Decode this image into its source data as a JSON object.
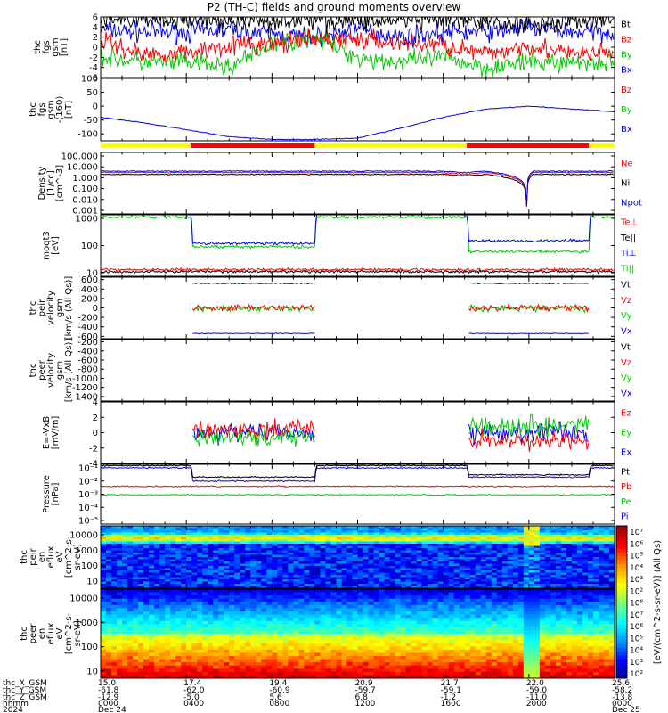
{
  "title": "P2 (TH-C) fields and ground moments overview",
  "chart_data": [
    {
      "type": "line",
      "ylabel": [
        "thc",
        "fgs",
        "gsm",
        "[nT]"
      ],
      "ylim": [
        -6,
        6
      ],
      "yticks": [
        "6",
        "4",
        "2",
        "0",
        "-2",
        "-4",
        "-6"
      ],
      "legend": [
        "Bt",
        "Bz",
        "By",
        "Bx"
      ],
      "colors": [
        "#000000",
        "#ff0000",
        "#00cc00",
        "#0000ff"
      ],
      "series": [
        {
          "name": "Bt",
          "x": [
            0,
            2,
            4,
            6,
            8,
            10,
            12,
            14,
            16,
            18,
            20,
            22,
            24
          ],
          "values": [
            5.6,
            5.5,
            5.4,
            5.3,
            5.2,
            5.4,
            5.2,
            5.3,
            5.2,
            5.0,
            4.6,
            5.3,
            5.4
          ]
        },
        {
          "name": "Bz",
          "x": [
            0,
            2,
            4,
            6,
            8,
            10,
            12,
            14,
            16,
            18,
            20,
            22,
            24
          ],
          "values": [
            1.5,
            -1.5,
            -1.0,
            0.5,
            0.5,
            1.5,
            1.5,
            0.8,
            0.5,
            -1.5,
            0.5,
            -1.5,
            -1.0
          ]
        },
        {
          "name": "By",
          "x": [
            0,
            2,
            4,
            6,
            8,
            10,
            12,
            14,
            16,
            18,
            20,
            22,
            24
          ],
          "values": [
            -2,
            -3,
            -3,
            -4,
            0.5,
            2,
            -2,
            -3,
            -2,
            -4,
            -3,
            -3,
            -3
          ]
        },
        {
          "name": "Bx",
          "x": [
            0,
            2,
            4,
            6,
            8,
            10,
            12,
            14,
            16,
            18,
            20,
            22,
            24
          ],
          "values": [
            3.5,
            3,
            3,
            3.5,
            2.5,
            2,
            3.5,
            2,
            3,
            3,
            4,
            3,
            3
          ]
        }
      ]
    },
    {
      "type": "line",
      "ylabel": [
        "thc",
        "fgs",
        "gsm",
        "-(160)",
        "[nT]"
      ],
      "ylim": [
        -125,
        100
      ],
      "yticks": [
        "100",
        "50",
        "0",
        "-50",
        "-100"
      ],
      "legend": [
        "Bz",
        "By",
        "Bx"
      ],
      "colors": [
        "#ff0000",
        "#00cc00",
        "#0000ff"
      ],
      "series": [
        {
          "name": "Bx",
          "x": [
            0,
            2,
            4,
            6,
            8,
            10,
            12,
            14,
            16,
            18,
            20,
            22,
            24
          ],
          "values": [
            -40,
            -60,
            -85,
            -110,
            -120,
            -120,
            -115,
            -80,
            -40,
            -10,
            0,
            -10,
            -20
          ]
        }
      ],
      "region_bar": {
        "colors": [
          "#ffff00",
          "#ff0000",
          "#ffff00",
          "#ff0000",
          "#ffff00"
        ],
        "x_ranges": [
          [
            0,
            4.2
          ],
          [
            4.2,
            10
          ],
          [
            10,
            17.1
          ],
          [
            17.1,
            22.8
          ],
          [
            22.8,
            24
          ]
        ]
      }
    },
    {
      "type": "line",
      "ylabel": [
        "Density",
        "[1/cc]",
        "[cm^-3]"
      ],
      "scale": "log",
      "yticks": [
        "100.000",
        "10.000",
        "1.000",
        "0.100",
        "0.010",
        "0.001"
      ],
      "legend": [
        "Ne",
        "Ni",
        "Npot"
      ],
      "colors": [
        "#ff0000",
        "#000000",
        "#0000ff"
      ],
      "series": [
        {
          "name": "Npot",
          "x": [
            0,
            4,
            8,
            10,
            12,
            16,
            17,
            18,
            19.9,
            20.2,
            21,
            24
          ],
          "values": [
            4,
            4,
            4,
            4,
            4,
            4,
            3,
            4,
            0.003,
            4,
            4,
            4
          ]
        },
        {
          "name": "Ne",
          "x": [
            0,
            4,
            8,
            10,
            12,
            16,
            17,
            18,
            19.9,
            20.2,
            21,
            24
          ],
          "values": [
            3,
            3,
            3,
            3,
            3,
            3,
            2,
            3,
            0.002,
            3,
            3,
            3
          ]
        },
        {
          "name": "Ni",
          "x": [
            0,
            4,
            8,
            10,
            12,
            16,
            17,
            18,
            19.9,
            20.2,
            21,
            24
          ],
          "values": [
            2,
            2,
            2,
            2,
            2,
            2,
            1.5,
            2,
            0.003,
            2,
            2,
            2
          ]
        }
      ]
    },
    {
      "type": "line",
      "ylabel": [
        "moqt3",
        "[eV]"
      ],
      "scale": "log",
      "yticks": [
        "1000",
        "100",
        "10"
      ],
      "legend": [
        "Te⊥",
        "Te||",
        "Ti⊥",
        "Ti||"
      ],
      "colors": [
        "#ff0000",
        "#000000",
        "#0000ff",
        "#00cc00"
      ],
      "series": [
        {
          "name": "Ti⊥",
          "x": [
            0,
            4.2,
            4.3,
            10,
            10.1,
            17.1,
            17.2,
            22.8,
            22.9,
            24
          ],
          "values": [
            1500,
            1500,
            120,
            120,
            1500,
            1500,
            150,
            150,
            1500,
            1500
          ]
        },
        {
          "name": "Ti||",
          "x": [
            0,
            4.2,
            4.3,
            10,
            10.1,
            17.1,
            17.2,
            22.8,
            22.9,
            24
          ],
          "values": [
            1100,
            1100,
            90,
            90,
            1100,
            1100,
            60,
            60,
            1100,
            1100
          ]
        },
        {
          "name": "Te⊥",
          "x": [
            0,
            24
          ],
          "values": [
            13,
            13
          ]
        },
        {
          "name": "Te||",
          "x": [
            0,
            24
          ],
          "values": [
            11,
            11
          ]
        }
      ]
    },
    {
      "type": "line",
      "ylabel": [
        "thc",
        "peir",
        "velocity",
        "gsm",
        "[km/s (All Qs)]"
      ],
      "ylim": [
        -650,
        650
      ],
      "yticks": [
        "600",
        "400",
        "200",
        "0",
        "-200",
        "-400",
        "-600"
      ],
      "legend": [
        "Vt",
        "Vz",
        "Vy",
        "Vx"
      ],
      "colors": [
        "#000000",
        "#ff0000",
        "#00cc00",
        "#0000ff"
      ],
      "series": [
        {
          "name": "Vt",
          "x": [
            4.3,
            10,
            17.2,
            22.8
          ],
          "values": [
            520,
            520,
            520,
            520
          ]
        },
        {
          "name": "Vz",
          "x": [
            4.3,
            10,
            17.2,
            22.8
          ],
          "values": [
            0,
            0,
            0,
            0
          ]
        },
        {
          "name": "Vy",
          "x": [
            4.3,
            10,
            17.2,
            22.8
          ],
          "values": [
            -10,
            -10,
            -10,
            -10
          ]
        },
        {
          "name": "Vx",
          "x": [
            4.3,
            10,
            17.2,
            22.8
          ],
          "values": [
            -540,
            -540,
            -540,
            -540
          ]
        }
      ]
    },
    {
      "type": "line",
      "ylabel": [
        "thc",
        "peer",
        "velocity",
        "gsm",
        "[km/s (All Qs)]"
      ],
      "ylim": [
        -1500,
        -150
      ],
      "yticks": [
        "-200",
        "-400",
        "-600",
        "-800",
        "-1000",
        "-1200",
        "-1400"
      ],
      "legend": [
        "Vt",
        "Vz",
        "Vy",
        "Vx"
      ],
      "colors": [
        "#000000",
        "#ff0000",
        "#00cc00",
        "#0000ff"
      ],
      "series": []
    },
    {
      "type": "line",
      "ylabel": [
        "E=-VxB",
        "[mV/m]"
      ],
      "ylim": [
        -4,
        4
      ],
      "yticks": [
        "4",
        "2",
        "0",
        "-2",
        "-4"
      ],
      "legend": [
        "Ez",
        "Ey",
        "Ex"
      ],
      "colors": [
        "#ff0000",
        "#00cc00",
        "#0000ff"
      ],
      "series": [
        {
          "name": "Ez",
          "x": [
            4.3,
            10,
            17.2,
            22.8
          ],
          "values": [
            0.5,
            0.5,
            -1.0,
            -1.0
          ]
        },
        {
          "name": "Ey",
          "x": [
            4.3,
            10,
            17.2,
            22.8
          ],
          "values": [
            -0.5,
            -0.5,
            1.0,
            1.0
          ]
        },
        {
          "name": "Ex",
          "x": [
            4.3,
            10,
            17.2,
            22.8
          ],
          "values": [
            0,
            0,
            0,
            0
          ]
        }
      ]
    },
    {
      "type": "line",
      "ylabel": [
        "Pressure",
        "[nPa]"
      ],
      "scale": "log",
      "yticks": [
        "10^-1",
        "10^-2",
        "10^-3",
        "10^-4",
        "10^-5"
      ],
      "legend": [
        "Pt",
        "Pb",
        "Pe",
        "Pi"
      ],
      "colors": [
        "#000000",
        "#ff0000",
        "#00cc00",
        "#0000ff"
      ],
      "series": [
        {
          "name": "Pt",
          "x": [
            0,
            4.2,
            4.3,
            10,
            10.1,
            17.1,
            17.2,
            22.8,
            22.9,
            24
          ],
          "values": [
            0.15,
            0.15,
            0.02,
            0.02,
            0.15,
            0.15,
            0.03,
            0.03,
            0.15,
            0.15
          ]
        },
        {
          "name": "Pb",
          "x": [
            0,
            24
          ],
          "values": [
            0.004,
            0.004
          ]
        },
        {
          "name": "Pe",
          "x": [
            0,
            24
          ],
          "values": [
            0.0009,
            0.0009
          ]
        },
        {
          "name": "Pi",
          "x": [
            0,
            4.2,
            4.3,
            10,
            10.1,
            17.1,
            17.2,
            22.8,
            22.9,
            24
          ],
          "values": [
            0.1,
            0.1,
            0.01,
            0.01,
            0.1,
            0.1,
            0.02,
            0.02,
            0.1,
            0.1
          ]
        }
      ]
    },
    {
      "type": "heatmap",
      "ylabel": [
        "thc",
        "peir",
        "en",
        "eflux",
        "eV",
        "[cm^2-s-",
        "sr-eV]"
      ],
      "scale": "log",
      "yticks": [
        "10000",
        "1000",
        "100",
        "10"
      ]
    },
    {
      "type": "heatmap",
      "ylabel": [
        "thc",
        "peer",
        "en",
        "eflux",
        "eV",
        "[cm^2-s-",
        "sr-eV]"
      ],
      "scale": "log",
      "yticks": [
        "10000",
        "1000",
        "100",
        "10"
      ]
    }
  ],
  "colorbar": {
    "label": "[eV/(cm^2-s-sr-eV)] (All Qs)",
    "ticks": [
      "10^7",
      "10^6",
      "10^5",
      "10^4",
      "10^3",
      "10^2",
      "10^8",
      "10^7",
      "10^6",
      "10^5",
      "10^4",
      "10^3",
      "10^2"
    ]
  },
  "x_axis": {
    "row_labels": [
      "thc_X_GSM",
      "thc_Y_GSM",
      "thc_Z_GSM",
      "hhmm",
      "2024"
    ],
    "ticks": [
      {
        "x": 0,
        "values": [
          "15.0",
          "-61.8",
          "-12.9",
          "0000",
          "Dec 24"
        ]
      },
      {
        "x": 4,
        "values": [
          "17.4",
          "-62.0",
          "-5.0",
          "0400",
          ""
        ]
      },
      {
        "x": 8,
        "values": [
          "19.4",
          "-60.9",
          "5.6",
          "0800",
          ""
        ]
      },
      {
        "x": 12,
        "values": [
          "20.9",
          "-59.7",
          "6.8",
          "1200",
          ""
        ]
      },
      {
        "x": 16,
        "values": [
          "21.7",
          "-59.1",
          "-1.2",
          "1600",
          ""
        ]
      },
      {
        "x": 20,
        "values": [
          "22.0",
          "-59.0",
          "-11.0",
          "2000",
          ""
        ]
      },
      {
        "x": 24,
        "values": [
          "25.6",
          "-58.2",
          "-13.8",
          "0000",
          "Dec 25"
        ]
      }
    ]
  }
}
